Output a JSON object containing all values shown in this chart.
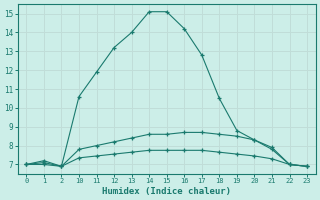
{
  "xlabel": "Humidex (Indice chaleur)",
  "bg_color": "#cceee8",
  "grid_color": "#c0ddd8",
  "line_color": "#1a7a6e",
  "hours": [
    0,
    1,
    2,
    10,
    11,
    12,
    13,
    14,
    15,
    16,
    17,
    18,
    19,
    20,
    21,
    22,
    23
  ],
  "ylim": [
    6.5,
    15.5
  ],
  "yticks": [
    7,
    8,
    9,
    10,
    11,
    12,
    13,
    14,
    15
  ],
  "line1_y": [
    7.0,
    7.2,
    6.9,
    10.6,
    11.9,
    13.2,
    14.0,
    15.1,
    15.1,
    14.2,
    12.8,
    10.5,
    8.8,
    8.3,
    7.9,
    7.0,
    6.9
  ],
  "line2_y": [
    7.0,
    7.1,
    6.9,
    7.8,
    8.0,
    8.2,
    8.4,
    8.6,
    8.6,
    8.7,
    8.7,
    8.6,
    8.5,
    8.3,
    7.8,
    7.0,
    6.9
  ],
  "line3_y": [
    7.0,
    7.0,
    6.9,
    7.35,
    7.45,
    7.55,
    7.65,
    7.75,
    7.75,
    7.75,
    7.75,
    7.65,
    7.55,
    7.45,
    7.3,
    7.0,
    6.9
  ]
}
